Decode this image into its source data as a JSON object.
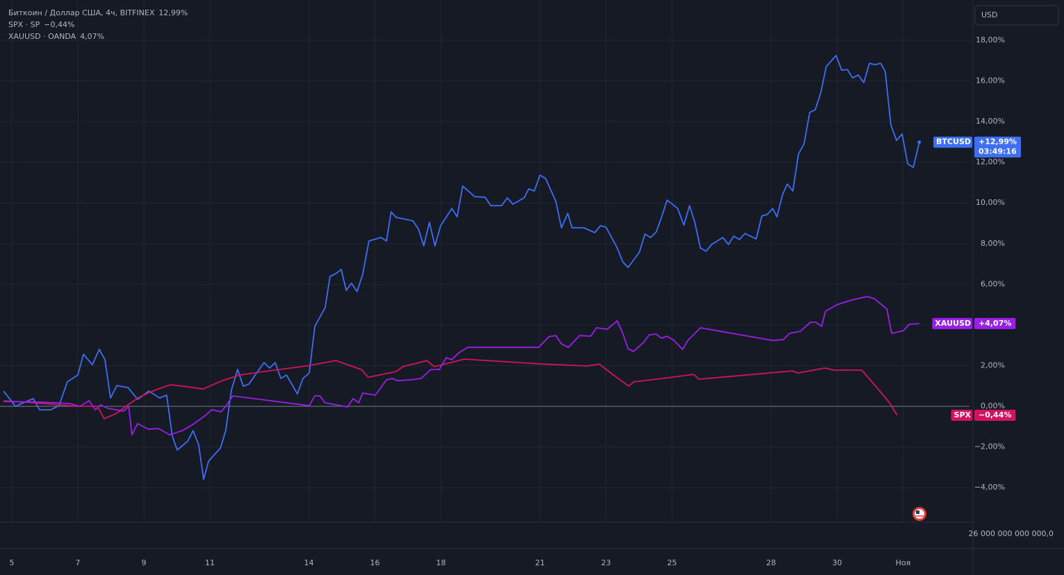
{
  "chart_data": {
    "type": "line",
    "currency_button": "USD",
    "volume_axis_label": "26 000 000 000 000,0",
    "xlim": [
      -0.358,
      29.011
    ],
    "ylim": [
      -5.7,
      19.98
    ],
    "baseline": 0,
    "grid": true,
    "xticks": [
      {
        "value": 0,
        "label": "5"
      },
      {
        "value": 2,
        "label": "7"
      },
      {
        "value": 4,
        "label": "9"
      },
      {
        "value": 6,
        "label": "11"
      },
      {
        "value": 9,
        "label": "14"
      },
      {
        "value": 11,
        "label": "16"
      },
      {
        "value": 13,
        "label": "18"
      },
      {
        "value": 16,
        "label": "21"
      },
      {
        "value": 18,
        "label": "23"
      },
      {
        "value": 20,
        "label": "25"
      },
      {
        "value": 23,
        "label": "28"
      },
      {
        "value": 25,
        "label": "30"
      },
      {
        "value": 27,
        "label": "Ноя"
      }
    ],
    "yticks": [
      {
        "value": -4,
        "label": "−4,00%"
      },
      {
        "value": -2,
        "label": "−2,00%"
      },
      {
        "value": 0,
        "label": "0,00%"
      },
      {
        "value": 2,
        "label": "2,00%"
      },
      {
        "value": 4,
        "label": "4,00%"
      },
      {
        "value": 6,
        "label": "6,00%"
      },
      {
        "value": 8,
        "label": "8,00%"
      },
      {
        "value": 10,
        "label": "10,00%"
      },
      {
        "value": 12,
        "label": "12,00%"
      },
      {
        "value": 14,
        "label": "14,00%"
      },
      {
        "value": 16,
        "label": "16,00%"
      },
      {
        "value": 18,
        "label": "18,00%"
      }
    ],
    "series": [
      {
        "name": "Биткоин / Доллар США, 4ч, BITFINEX",
        "legend_value": "12,99%",
        "color": "#3d6ef5",
        "badge": {
          "symbol": "BTCUSD",
          "value": "+12,99%",
          "time": "03:49:16"
        },
        "x": [
          -0.25,
          0.11,
          0.65,
          0.84,
          1.18,
          1.43,
          1.68,
          2.0,
          2.17,
          2.44,
          2.65,
          2.82,
          2.99,
          3.18,
          3.52,
          3.81,
          4.15,
          4.48,
          4.69,
          4.86,
          5.01,
          5.33,
          5.49,
          5.66,
          5.81,
          5.96,
          6.32,
          6.48,
          6.65,
          6.84,
          7.01,
          7.18,
          7.64,
          7.81,
          7.98,
          8.15,
          8.32,
          8.65,
          8.82,
          9.01,
          9.18,
          9.49,
          9.64,
          9.81,
          9.98,
          10.13,
          10.29,
          10.46,
          10.63,
          10.82,
          11.18,
          11.35,
          11.49,
          11.64,
          12.15,
          12.32,
          12.48,
          12.65,
          12.82,
          12.99,
          13.33,
          13.49,
          13.66,
          14.02,
          14.34,
          14.51,
          14.84,
          15.01,
          15.18,
          15.52,
          15.66,
          15.83,
          16.0,
          16.17,
          16.48,
          16.65,
          16.84,
          16.97,
          17.33,
          17.66,
          17.83,
          18.0,
          18.34,
          18.51,
          18.67,
          19.01,
          19.18,
          19.35,
          19.52,
          19.68,
          19.85,
          20.17,
          20.36,
          20.53,
          20.69,
          20.86,
          21.03,
          21.2,
          21.54,
          21.71,
          21.87,
          22.04,
          22.21,
          22.55,
          22.72,
          22.88,
          23.05,
          23.18,
          23.35,
          23.49,
          23.66,
          23.83,
          24.0,
          24.17,
          24.34,
          24.51,
          24.67,
          24.97,
          25.14,
          25.31,
          25.47,
          25.64,
          25.81,
          25.98,
          26.15,
          26.32,
          26.46,
          26.63,
          26.8,
          26.97,
          27.14,
          27.31,
          27.49
        ],
        "values": [
          0.75,
          0.0,
          0.38,
          -0.17,
          -0.17,
          0.03,
          1.2,
          1.54,
          2.56,
          2.05,
          2.8,
          2.29,
          0.41,
          1.02,
          0.92,
          0.34,
          0.75,
          0.41,
          0.55,
          -1.47,
          -2.15,
          -1.71,
          -1.2,
          -1.88,
          -3.59,
          -2.7,
          -2.05,
          -1.2,
          0.79,
          1.81,
          0.99,
          1.09,
          2.15,
          1.88,
          2.15,
          1.37,
          1.54,
          0.61,
          1.37,
          1.64,
          3.93,
          4.85,
          6.39,
          6.52,
          6.73,
          5.7,
          6.05,
          5.64,
          6.49,
          8.13,
          8.3,
          8.13,
          9.56,
          9.29,
          9.12,
          8.71,
          7.89,
          9.05,
          7.89,
          8.88,
          9.73,
          9.32,
          10.83,
          10.31,
          10.28,
          9.87,
          9.87,
          10.25,
          9.94,
          10.25,
          10.69,
          10.59,
          11.37,
          11.2,
          10.08,
          8.78,
          9.49,
          8.78,
          8.78,
          8.54,
          8.88,
          8.81,
          7.79,
          7.1,
          6.83,
          7.58,
          8.47,
          8.3,
          8.57,
          9.29,
          10.14,
          9.73,
          8.91,
          9.87,
          9.05,
          7.79,
          7.62,
          7.96,
          8.3,
          7.96,
          8.37,
          8.2,
          8.5,
          8.23,
          9.36,
          9.43,
          9.73,
          9.32,
          10.42,
          10.93,
          10.59,
          12.4,
          12.91,
          14.45,
          14.58,
          15.44,
          16.7,
          17.25,
          16.53,
          16.56,
          16.15,
          16.29,
          15.92,
          16.87,
          16.8,
          16.87,
          16.46,
          13.83,
          13.08,
          13.39,
          11.92,
          11.75,
          12.99
        ]
      },
      {
        "name": "SPX · SP",
        "legend_value": "−0,44%",
        "color": "#d2145f",
        "badge": {
          "symbol": "SPX",
          "value": "−0,44%"
        },
        "x": [
          -0.25,
          0.69,
          2.0,
          2.59,
          2.8,
          3.18,
          3.54,
          3.85,
          4.27,
          4.8,
          5.33,
          5.79,
          6.38,
          6.91,
          7.64,
          8.91,
          9.81,
          10.59,
          10.8,
          11.64,
          11.85,
          12.57,
          12.8,
          13.12,
          13.71,
          16.06,
          16.59,
          17.43,
          17.79,
          18.17,
          18.69,
          18.84,
          19.85,
          20.65,
          20.82,
          23.64,
          23.81,
          24.63,
          24.91,
          25.75,
          26.17,
          26.59,
          26.82
        ],
        "values": [
          0.27,
          0.17,
          0.0,
          0.0,
          -0.61,
          -0.34,
          0.1,
          0.44,
          0.75,
          1.06,
          0.96,
          0.85,
          1.26,
          1.54,
          1.71,
          1.98,
          2.25,
          1.81,
          1.43,
          1.71,
          1.95,
          2.25,
          1.95,
          2.08,
          2.32,
          2.08,
          2.05,
          1.98,
          2.08,
          1.61,
          0.99,
          1.2,
          1.4,
          1.57,
          1.33,
          1.74,
          1.64,
          1.88,
          1.78,
          1.78,
          0.99,
          0.17,
          -0.44
        ]
      },
      {
        "name": "XAUUSD · OANDA",
        "legend_value": "4,07%",
        "color": "#9b1fe8",
        "badge": {
          "symbol": "XAUUSD",
          "value": "+4,07%"
        },
        "x": [
          -0.25,
          0.91,
          1.75,
          2.06,
          2.34,
          2.53,
          2.69,
          2.91,
          3.39,
          3.54,
          3.64,
          3.81,
          4.15,
          4.44,
          4.78,
          5.16,
          5.49,
          5.87,
          6.06,
          6.34,
          6.48,
          6.69,
          9.01,
          9.18,
          9.33,
          9.49,
          10.17,
          10.34,
          10.51,
          10.63,
          11.01,
          11.35,
          11.52,
          11.68,
          12.06,
          12.4,
          12.69,
          12.95,
          13.16,
          13.33,
          13.54,
          13.81,
          15.96,
          16.27,
          16.48,
          16.65,
          16.86,
          17.2,
          17.54,
          17.71,
          18.04,
          18.34,
          18.51,
          18.67,
          18.84,
          19.14,
          19.31,
          19.52,
          19.68,
          19.85,
          20.06,
          20.32,
          20.48,
          20.86,
          23.05,
          23.37,
          23.56,
          23.89,
          24.19,
          24.36,
          24.53,
          24.65,
          24.99,
          25.45,
          25.92,
          26.13,
          26.51,
          26.65,
          27.01,
          27.18,
          27.49
        ],
        "values": [
          0.24,
          0.2,
          0.14,
          0.0,
          0.27,
          -0.17,
          0.07,
          -0.1,
          -0.24,
          0.0,
          -1.4,
          -0.85,
          -1.13,
          -1.09,
          -1.4,
          -1.2,
          -0.89,
          -0.44,
          -0.17,
          -0.27,
          0.0,
          0.51,
          0.03,
          0.51,
          0.51,
          0.17,
          -0.03,
          0.38,
          0.17,
          0.65,
          0.55,
          1.3,
          1.37,
          1.26,
          1.3,
          1.37,
          1.81,
          1.81,
          2.39,
          2.29,
          2.63,
          2.9,
          2.9,
          3.42,
          3.48,
          3.07,
          2.9,
          3.48,
          3.45,
          3.86,
          3.79,
          4.2,
          3.59,
          2.83,
          2.7,
          3.14,
          3.52,
          3.55,
          3.35,
          3.45,
          3.24,
          2.8,
          3.24,
          3.86,
          3.24,
          3.28,
          3.59,
          3.69,
          4.13,
          4.13,
          3.93,
          4.68,
          4.99,
          5.23,
          5.4,
          5.29,
          4.78,
          3.59,
          3.72,
          4.03,
          4.07
        ]
      }
    ]
  }
}
